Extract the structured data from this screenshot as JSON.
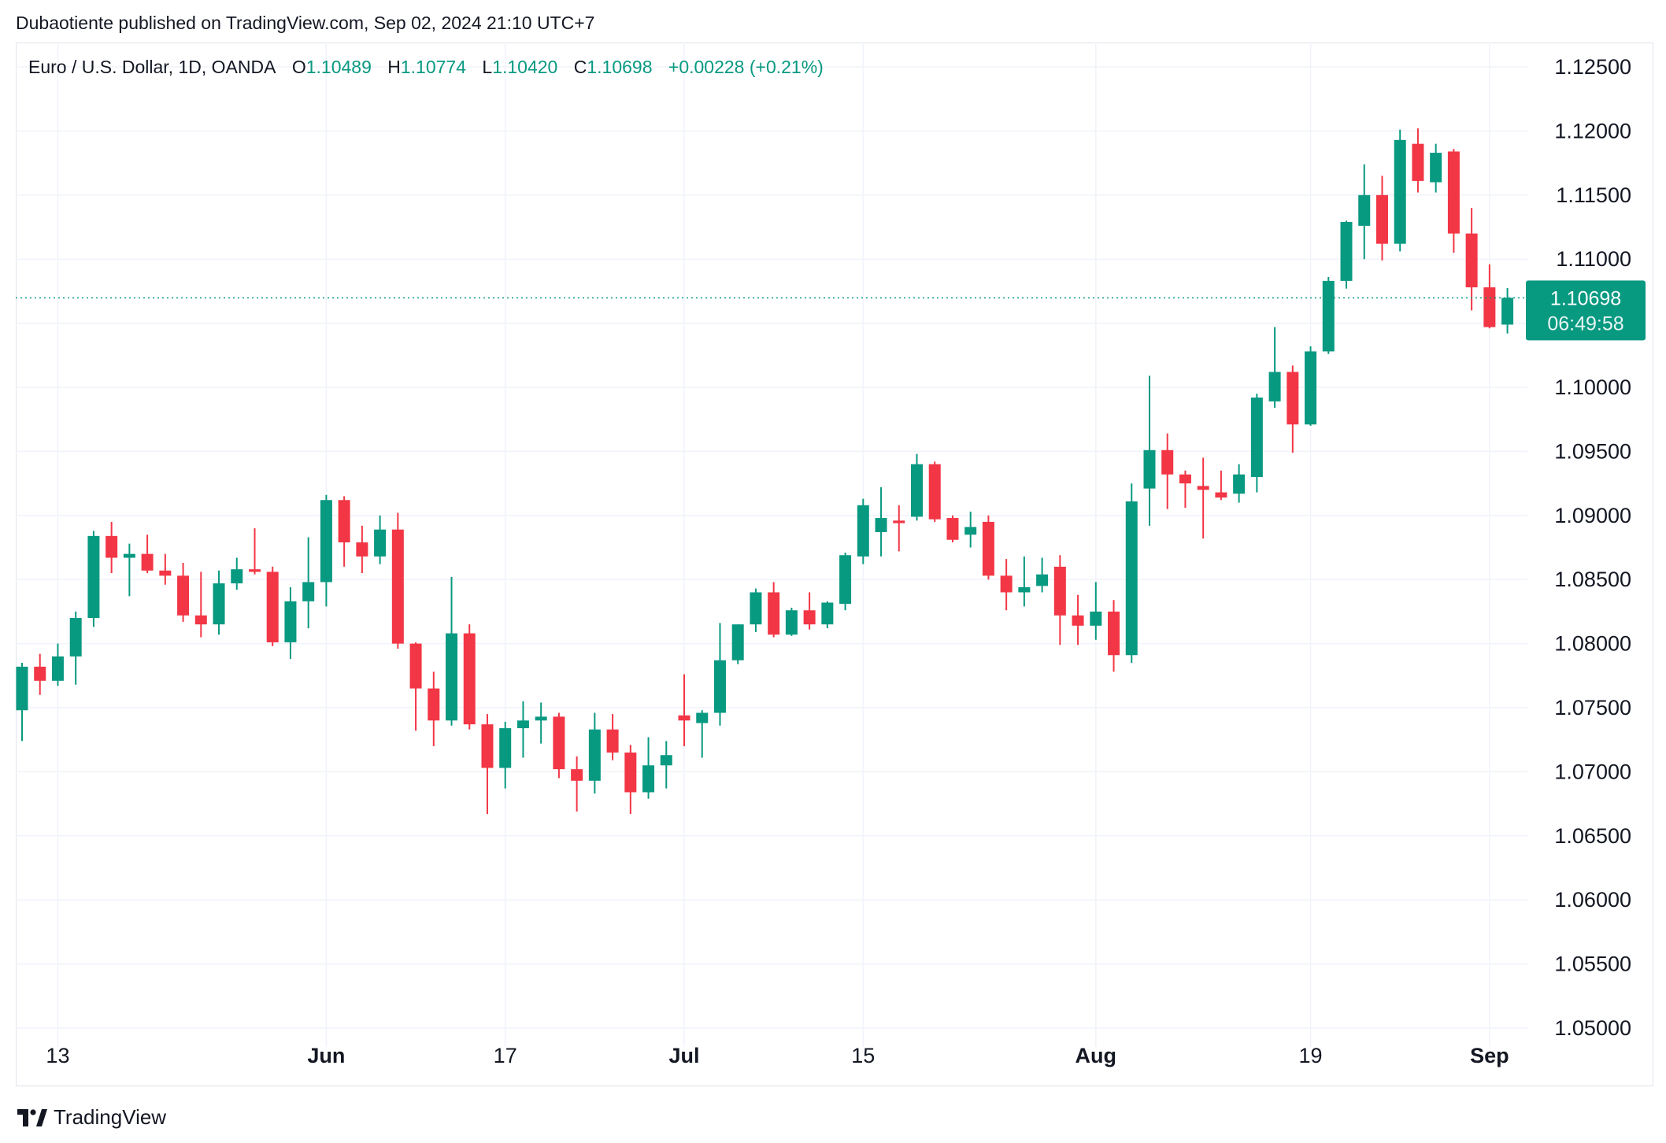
{
  "header": {
    "published": "Dubaotiente published on TradingView.com, Sep 02, 2024 21:10 UTC+7"
  },
  "legend": {
    "symbol": "Euro / U.S. Dollar, 1D, OANDA",
    "open_label": "O",
    "open": "1.10489",
    "high_label": "H",
    "high": "1.10774",
    "low_label": "L",
    "low": "1.10420",
    "close_label": "C",
    "close": "1.10698",
    "change": "+0.00228 (+0.21%)"
  },
  "price_badge": {
    "price": "1.10698",
    "countdown": "06:49:58"
  },
  "footer": {
    "brand": "TradingView"
  },
  "colors": {
    "up": "#089981",
    "down": "#f23645",
    "grid": "#f0f3fa",
    "text": "#131722",
    "badge": "#089981"
  },
  "icons": {
    "logo": "tradingview-logo-icon"
  },
  "chart_data": {
    "type": "candlestick",
    "timeframe": "1D",
    "y_axis": {
      "min": 1.05,
      "max": 1.125,
      "step": 0.005,
      "ticks": [
        "1.12500",
        "1.12000",
        "1.11500",
        "1.11000",
        "1.10500",
        "1.10000",
        "1.09500",
        "1.09000",
        "1.08500",
        "1.08000",
        "1.07500",
        "1.07000",
        "1.06500",
        "1.06000",
        "1.05500",
        "1.05000"
      ]
    },
    "x_axis": {
      "ticks": [
        {
          "label": "13",
          "index": 2,
          "bold": false
        },
        {
          "label": "Jun",
          "index": 17,
          "bold": true
        },
        {
          "label": "17",
          "index": 27,
          "bold": false
        },
        {
          "label": "Jul",
          "index": 37,
          "bold": true
        },
        {
          "label": "15",
          "index": 47,
          "bold": false
        },
        {
          "label": "Aug",
          "index": 60,
          "bold": true
        },
        {
          "label": "19",
          "index": 72,
          "bold": false
        },
        {
          "label": "Sep",
          "index": 82,
          "bold": true
        }
      ]
    },
    "last_price": 1.10698,
    "grid": true,
    "candles": [
      {
        "o": 1.0748,
        "h": 1.0785,
        "l": 1.0724,
        "c": 1.0782
      },
      {
        "o": 1.0782,
        "h": 1.0792,
        "l": 1.076,
        "c": 1.0771
      },
      {
        "o": 1.0771,
        "h": 1.08,
        "l": 1.0767,
        "c": 1.079
      },
      {
        "o": 1.079,
        "h": 1.0825,
        "l": 1.0768,
        "c": 1.082
      },
      {
        "o": 1.082,
        "h": 1.0888,
        "l": 1.0813,
        "c": 1.0884
      },
      {
        "o": 1.0884,
        "h": 1.0895,
        "l": 1.0855,
        "c": 1.0867
      },
      {
        "o": 1.0867,
        "h": 1.0878,
        "l": 1.0837,
        "c": 1.087
      },
      {
        "o": 1.087,
        "h": 1.0885,
        "l": 1.0855,
        "c": 1.0857
      },
      {
        "o": 1.0857,
        "h": 1.087,
        "l": 1.0846,
        "c": 1.0853
      },
      {
        "o": 1.0853,
        "h": 1.0863,
        "l": 1.0817,
        "c": 1.0822
      },
      {
        "o": 1.0822,
        "h": 1.0856,
        "l": 1.0805,
        "c": 1.0815
      },
      {
        "o": 1.0815,
        "h": 1.0857,
        "l": 1.0807,
        "c": 1.0847
      },
      {
        "o": 1.0847,
        "h": 1.0867,
        "l": 1.0842,
        "c": 1.0858
      },
      {
        "o": 1.0858,
        "h": 1.089,
        "l": 1.0854,
        "c": 1.0856
      },
      {
        "o": 1.0856,
        "h": 1.086,
        "l": 1.0798,
        "c": 1.0801
      },
      {
        "o": 1.0801,
        "h": 1.0844,
        "l": 1.0788,
        "c": 1.0833
      },
      {
        "o": 1.0833,
        "h": 1.0883,
        "l": 1.0812,
        "c": 1.0848
      },
      {
        "o": 1.0848,
        "h": 1.0916,
        "l": 1.0829,
        "c": 1.0912
      },
      {
        "o": 1.0912,
        "h": 1.0915,
        "l": 1.086,
        "c": 1.0879
      },
      {
        "o": 1.0879,
        "h": 1.0892,
        "l": 1.0855,
        "c": 1.0868
      },
      {
        "o": 1.0868,
        "h": 1.09,
        "l": 1.0862,
        "c": 1.0889
      },
      {
        "o": 1.0889,
        "h": 1.0902,
        "l": 1.0796,
        "c": 1.08
      },
      {
        "o": 1.08,
        "h": 1.0801,
        "l": 1.0732,
        "c": 1.0765
      },
      {
        "o": 1.0765,
        "h": 1.0778,
        "l": 1.072,
        "c": 1.074
      },
      {
        "o": 1.074,
        "h": 1.0852,
        "l": 1.0736,
        "c": 1.0808
      },
      {
        "o": 1.0808,
        "h": 1.0815,
        "l": 1.0733,
        "c": 1.0737
      },
      {
        "o": 1.0737,
        "h": 1.0745,
        "l": 1.0667,
        "c": 1.0703
      },
      {
        "o": 1.0703,
        "h": 1.0739,
        "l": 1.0687,
        "c": 1.0734
      },
      {
        "o": 1.0734,
        "h": 1.0755,
        "l": 1.0711,
        "c": 1.074
      },
      {
        "o": 1.074,
        "h": 1.0754,
        "l": 1.0722,
        "c": 1.0743
      },
      {
        "o": 1.0743,
        "h": 1.0746,
        "l": 1.0695,
        "c": 1.0702
      },
      {
        "o": 1.0702,
        "h": 1.0712,
        "l": 1.0669,
        "c": 1.0693
      },
      {
        "o": 1.0693,
        "h": 1.0746,
        "l": 1.0683,
        "c": 1.0733
      },
      {
        "o": 1.0733,
        "h": 1.0745,
        "l": 1.0709,
        "c": 1.0715
      },
      {
        "o": 1.0715,
        "h": 1.0721,
        "l": 1.0667,
        "c": 1.0684
      },
      {
        "o": 1.0684,
        "h": 1.0727,
        "l": 1.0679,
        "c": 1.0705
      },
      {
        "o": 1.0705,
        "h": 1.0724,
        "l": 1.0687,
        "c": 1.0713
      },
      {
        "o": 1.0744,
        "h": 1.0776,
        "l": 1.072,
        "c": 1.074
      },
      {
        "o": 1.0738,
        "h": 1.0748,
        "l": 1.0711,
        "c": 1.0746
      },
      {
        "o": 1.0746,
        "h": 1.0816,
        "l": 1.0736,
        "c": 1.0787
      },
      {
        "o": 1.0787,
        "h": 1.0815,
        "l": 1.0784,
        "c": 1.0815
      },
      {
        "o": 1.0815,
        "h": 1.0843,
        "l": 1.0809,
        "c": 1.084
      },
      {
        "o": 1.084,
        "h": 1.0848,
        "l": 1.0805,
        "c": 1.0807
      },
      {
        "o": 1.0807,
        "h": 1.0828,
        "l": 1.0806,
        "c": 1.0826
      },
      {
        "o": 1.0826,
        "h": 1.084,
        "l": 1.0811,
        "c": 1.0815
      },
      {
        "o": 1.0815,
        "h": 1.0833,
        "l": 1.0812,
        "c": 1.0832
      },
      {
        "o": 1.0831,
        "h": 1.0871,
        "l": 1.0826,
        "c": 1.0869
      },
      {
        "o": 1.0868,
        "h": 1.0913,
        "l": 1.0862,
        "c": 1.0908
      },
      {
        "o": 1.0887,
        "h": 1.0922,
        "l": 1.0868,
        "c": 1.0898
      },
      {
        "o": 1.0896,
        "h": 1.0908,
        "l": 1.0872,
        "c": 1.0894
      },
      {
        "o": 1.0899,
        "h": 1.0948,
        "l": 1.0896,
        "c": 1.094
      },
      {
        "o": 1.094,
        "h": 1.0942,
        "l": 1.0895,
        "c": 1.0897
      },
      {
        "o": 1.0898,
        "h": 1.09,
        "l": 1.0879,
        "c": 1.0881
      },
      {
        "o": 1.0885,
        "h": 1.0903,
        "l": 1.0875,
        "c": 1.0891
      },
      {
        "o": 1.0895,
        "h": 1.09,
        "l": 1.085,
        "c": 1.0853
      },
      {
        "o": 1.0853,
        "h": 1.0866,
        "l": 1.0826,
        "c": 1.084
      },
      {
        "o": 1.084,
        "h": 1.0868,
        "l": 1.0829,
        "c": 1.0844
      },
      {
        "o": 1.0845,
        "h": 1.0867,
        "l": 1.084,
        "c": 1.0854
      },
      {
        "o": 1.086,
        "h": 1.0869,
        "l": 1.0799,
        "c": 1.0822
      },
      {
        "o": 1.0822,
        "h": 1.0838,
        "l": 1.0799,
        "c": 1.0814
      },
      {
        "o": 1.0814,
        "h": 1.0848,
        "l": 1.0803,
        "c": 1.0825
      },
      {
        "o": 1.0825,
        "h": 1.0834,
        "l": 1.0778,
        "c": 1.0791
      },
      {
        "o": 1.0791,
        "h": 1.0925,
        "l": 1.0785,
        "c": 1.0911
      },
      {
        "o": 1.0921,
        "h": 1.1009,
        "l": 1.0892,
        "c": 1.0951
      },
      {
        "o": 1.0951,
        "h": 1.0964,
        "l": 1.0905,
        "c": 1.0932
      },
      {
        "o": 1.0932,
        "h": 1.0935,
        "l": 1.0906,
        "c": 1.0925
      },
      {
        "o": 1.0923,
        "h": 1.0945,
        "l": 1.0882,
        "c": 1.092
      },
      {
        "o": 1.0918,
        "h": 1.0935,
        "l": 1.0912,
        "c": 1.0914
      },
      {
        "o": 1.0917,
        "h": 1.094,
        "l": 1.091,
        "c": 1.0932
      },
      {
        "o": 1.093,
        "h": 1.0995,
        "l": 1.0918,
        "c": 1.0992
      },
      {
        "o": 1.0989,
        "h": 1.1047,
        "l": 1.0984,
        "c": 1.1012
      },
      {
        "o": 1.1012,
        "h": 1.1017,
        "l": 1.0949,
        "c": 1.0971
      },
      {
        "o": 1.0971,
        "h": 1.1032,
        "l": 1.097,
        "c": 1.1028
      },
      {
        "o": 1.1028,
        "h": 1.1086,
        "l": 1.1026,
        "c": 1.1083
      },
      {
        "o": 1.1083,
        "h": 1.113,
        "l": 1.1077,
        "c": 1.1129
      },
      {
        "o": 1.1126,
        "h": 1.1174,
        "l": 1.11,
        "c": 1.115
      },
      {
        "o": 1.115,
        "h": 1.1165,
        "l": 1.1099,
        "c": 1.1112
      },
      {
        "o": 1.1112,
        "h": 1.1201,
        "l": 1.1106,
        "c": 1.1193
      },
      {
        "o": 1.119,
        "h": 1.1202,
        "l": 1.1152,
        "c": 1.1161
      },
      {
        "o": 1.116,
        "h": 1.119,
        "l": 1.1152,
        "c": 1.1183
      },
      {
        "o": 1.1184,
        "h": 1.1186,
        "l": 1.1105,
        "c": 1.112
      },
      {
        "o": 1.112,
        "h": 1.114,
        "l": 1.106,
        "c": 1.1078
      },
      {
        "o": 1.1078,
        "h": 1.1096,
        "l": 1.1046,
        "c": 1.1047
      },
      {
        "o": 1.10489,
        "h": 1.10774,
        "l": 1.1042,
        "c": 1.10698
      }
    ]
  }
}
